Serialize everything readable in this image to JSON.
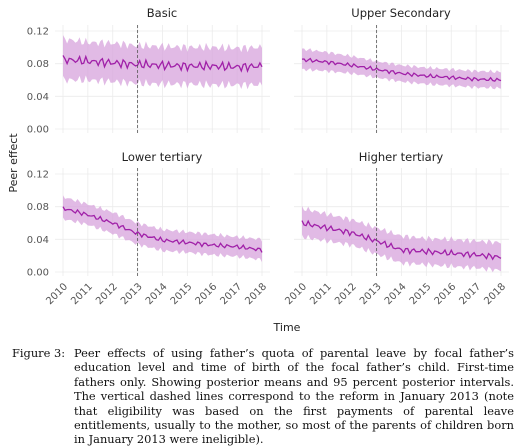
{
  "chart_data": {
    "type": "line",
    "ylabel": "Peer effect",
    "xlabel": "Time",
    "ylim": [
      0,
      0.12
    ],
    "y_ticks": [
      "0.00",
      "0.04",
      "0.08",
      "0.12"
    ],
    "xlim": [
      2010,
      2018
    ],
    "x_ticks": [
      "2010",
      "2011",
      "2012",
      "2013",
      "2014",
      "2015",
      "2016",
      "2017",
      "2018"
    ],
    "reference_line_x": 2013,
    "grid": true,
    "colors": {
      "line": "#a020a8",
      "band": "#d7a3dc",
      "reference": "#555555",
      "grid": "#ebebeb"
    },
    "panels": [
      {
        "title": "Basic",
        "x": [
          2010,
          2011,
          2012,
          2013,
          2014,
          2015,
          2016,
          2017,
          2018
        ],
        "mean": [
          0.085,
          0.083,
          0.081,
          0.079,
          0.078,
          0.077,
          0.077,
          0.076,
          0.077
        ],
        "lower": [
          0.06,
          0.06,
          0.058,
          0.056,
          0.055,
          0.055,
          0.054,
          0.054,
          0.054
        ],
        "upper": [
          0.11,
          0.106,
          0.105,
          0.102,
          0.101,
          0.1,
          0.1,
          0.099,
          0.1
        ],
        "wiggle": 0.006
      },
      {
        "title": "Upper Secondary",
        "x": [
          2010,
          2011,
          2012,
          2013,
          2014,
          2015,
          2016,
          2017,
          2018
        ],
        "mean": [
          0.085,
          0.082,
          0.078,
          0.073,
          0.068,
          0.065,
          0.063,
          0.061,
          0.06
        ],
        "lower": [
          0.073,
          0.071,
          0.068,
          0.063,
          0.058,
          0.055,
          0.053,
          0.051,
          0.05
        ],
        "upper": [
          0.098,
          0.094,
          0.089,
          0.083,
          0.078,
          0.075,
          0.073,
          0.071,
          0.07
        ],
        "wiggle": 0.0025
      },
      {
        "title": "Lower tertiary",
        "x": [
          2010,
          2011,
          2012,
          2013,
          2014,
          2015,
          2016,
          2017,
          2018
        ],
        "mean": [
          0.078,
          0.07,
          0.06,
          0.047,
          0.039,
          0.036,
          0.033,
          0.031,
          0.027
        ],
        "lower": [
          0.065,
          0.058,
          0.047,
          0.034,
          0.026,
          0.024,
          0.021,
          0.019,
          0.015
        ],
        "upper": [
          0.092,
          0.083,
          0.073,
          0.06,
          0.052,
          0.049,
          0.046,
          0.043,
          0.04
        ],
        "wiggle": 0.003
      },
      {
        "title": "Higher tertiary",
        "x": [
          2010,
          2011,
          2012,
          2013,
          2014,
          2015,
          2016,
          2017,
          2018
        ],
        "mean": [
          0.06,
          0.054,
          0.048,
          0.038,
          0.027,
          0.025,
          0.023,
          0.021,
          0.018
        ],
        "lower": [
          0.043,
          0.038,
          0.033,
          0.022,
          0.011,
          0.009,
          0.007,
          0.005,
          0.002
        ],
        "upper": [
          0.078,
          0.071,
          0.064,
          0.054,
          0.044,
          0.041,
          0.04,
          0.038,
          0.036
        ],
        "wiggle": 0.004
      }
    ]
  },
  "caption": {
    "label": "Figure 3:",
    "text": "Peer effects of using father’s quota of parental leave by focal father’s education level and time of birth of the focal father’s child. First-time fathers only. Showing posterior means and 95 percent posterior intervals. The vertical dashed lines correspond to the reform in January 2013 (note that eligibility was based on the first payments of parental leave entitlements, usually to the mother, so most of the parents of children born in January 2013 were ineligible)."
  }
}
